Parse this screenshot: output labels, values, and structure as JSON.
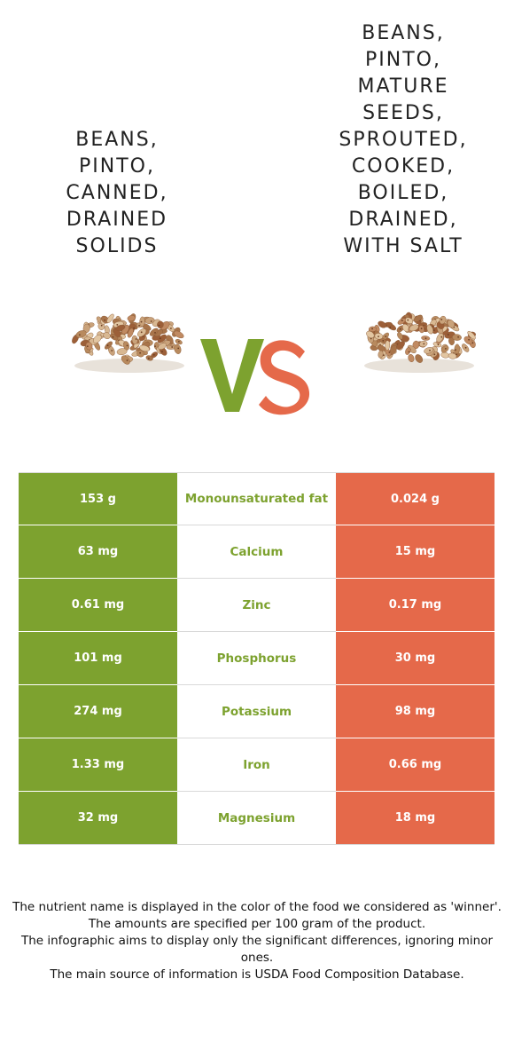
{
  "food_left": {
    "title_lines": [
      "BEANS,",
      "PINTO,",
      "CANNED,",
      "DRAINED",
      "SOLIDS"
    ],
    "image_icon": "pinto-beans-pile"
  },
  "food_right": {
    "title_lines": [
      "BEANS,",
      "PINTO,",
      "MATURE",
      "SEEDS,",
      "SPROUTED,",
      "COOKED,",
      "BOILED,",
      "DRAINED,",
      "WITH SALT"
    ],
    "image_icon": "pinto-beans-pile"
  },
  "vs": {
    "left_letter": "V",
    "right_letter": "S",
    "left_color": "#7da22f",
    "right_color": "#e5694a"
  },
  "colors": {
    "winner_left": "#7da22f",
    "winner_right": "#e5694a"
  },
  "nutrients": [
    {
      "left": "153 g",
      "name": "Monounsaturated fat",
      "right": "0.024 g"
    },
    {
      "left": "63 mg",
      "name": "Calcium",
      "right": "15 mg"
    },
    {
      "left": "0.61 mg",
      "name": "Zinc",
      "right": "0.17 mg"
    },
    {
      "left": "101 mg",
      "name": "Phosphorus",
      "right": "30 mg"
    },
    {
      "left": "274 mg",
      "name": "Potassium",
      "right": "98 mg"
    },
    {
      "left": "1.33 mg",
      "name": "Iron",
      "right": "0.66 mg"
    },
    {
      "left": "32 mg",
      "name": "Magnesium",
      "right": "18 mg"
    }
  ],
  "footnotes": [
    "The nutrient name is displayed in the color of the food we considered as 'winner'.",
    "The amounts are specified per 100 gram of the product.",
    "The infographic aims to display only the significant differences, ignoring minor ones.",
    "The main source of information is USDA Food Composition Database."
  ]
}
